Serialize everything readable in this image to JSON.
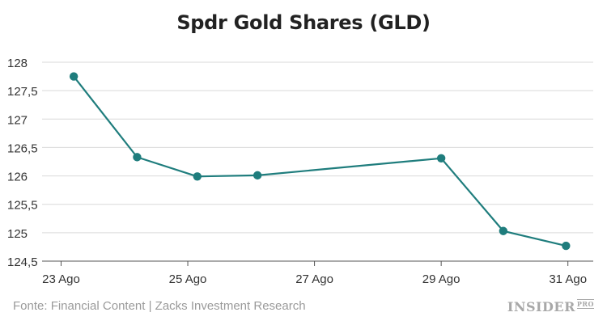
{
  "chart_data": {
    "type": "line",
    "title": "Spdr Gold Shares (GLD)",
    "xlabel": "",
    "ylabel": "",
    "x": [
      23,
      24,
      25,
      26,
      27,
      28,
      29,
      30,
      31
    ],
    "x_ticks": [
      {
        "day": 23,
        "label": "23 Ago"
      },
      {
        "day": 25,
        "label": "25 Ago"
      },
      {
        "day": 27,
        "label": "27 Ago"
      },
      {
        "day": 29,
        "label": "29 Ago"
      },
      {
        "day": 31,
        "label": "31 Ago"
      }
    ],
    "series": [
      {
        "name": "GLD",
        "color": "#1f7d7d",
        "points": [
          {
            "day": 23.2,
            "value": 127.75
          },
          {
            "day": 24.2,
            "value": 126.33
          },
          {
            "day": 25.15,
            "value": 125.99
          },
          {
            "day": 26.1,
            "value": 126.01
          },
          {
            "day": 29.0,
            "value": 126.31
          },
          {
            "day": 29.98,
            "value": 125.03
          },
          {
            "day": 30.97,
            "value": 124.77
          }
        ]
      }
    ],
    "y_ticks": [
      {
        "value": 124.5,
        "label": "124,5"
      },
      {
        "value": 125,
        "label": "125"
      },
      {
        "value": 125.5,
        "label": "125,5"
      },
      {
        "value": 126,
        "label": "126"
      },
      {
        "value": 126.5,
        "label": "126,5"
      },
      {
        "value": 127,
        "label": "127"
      },
      {
        "value": 127.5,
        "label": "127,5"
      },
      {
        "value": 128,
        "label": "128"
      }
    ],
    "ylim": [
      124.5,
      128
    ],
    "xlim": [
      22.7,
      31.4
    ],
    "grid": true
  },
  "source": "Fonte: Financial Content | Zacks Investment Research",
  "brand": {
    "name": "INSIDER",
    "suffix": "PRO"
  },
  "colors": {
    "line": "#1f7d7d",
    "grid": "#d9d9d9",
    "axis": "#555555",
    "text": "#333333"
  }
}
